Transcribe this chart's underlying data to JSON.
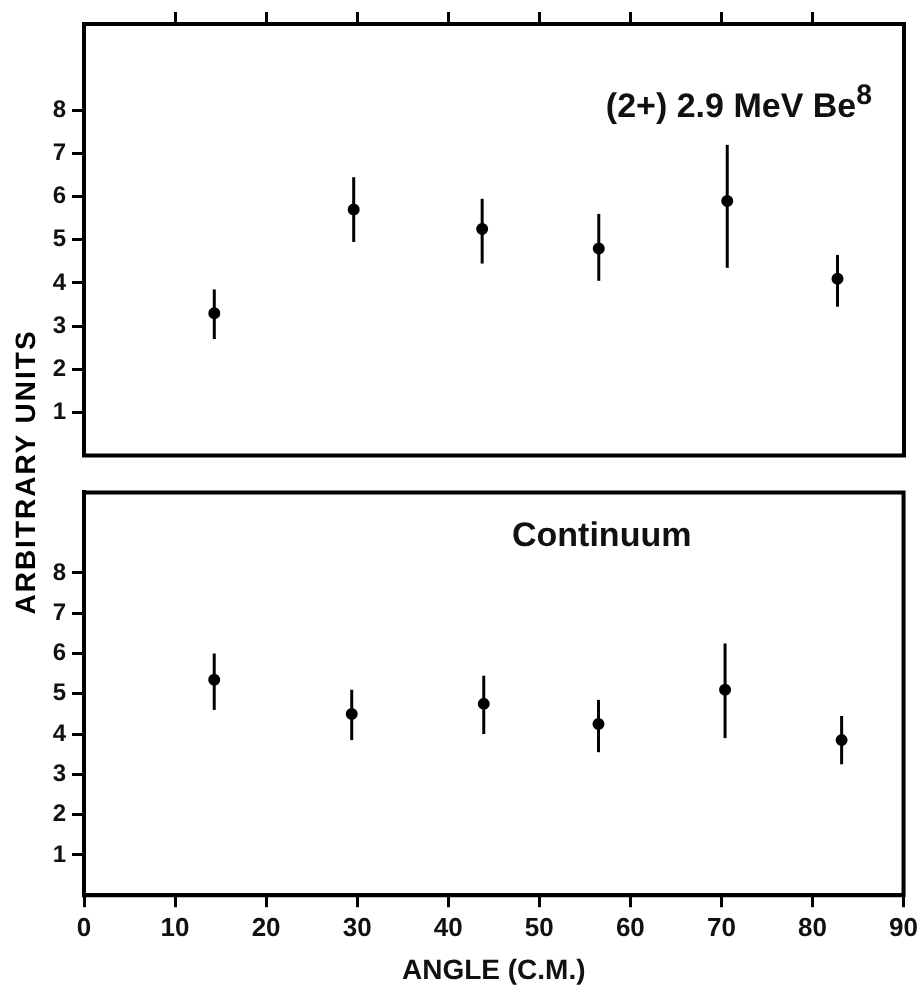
{
  "chart_data": [
    {
      "type": "scatter",
      "ylabel": "ARBITRARY UNITS",
      "annotations": [
        "(2+) 2.9 MeV Be$^{8}$"
      ],
      "color": "#000000",
      "marker": "circle",
      "grid": false,
      "tick_labels": "y",
      "x": [
        14.3,
        29.6,
        43.7,
        56.5,
        70.6,
        82.7
      ],
      "values": [
        3.3,
        5.7,
        5.25,
        4.8,
        5.9,
        4.1
      ],
      "errors": [
        [
          2.7,
          3.85
        ],
        [
          4.95,
          6.45
        ],
        [
          4.45,
          5.95
        ],
        [
          4.05,
          5.6
        ],
        [
          4.35,
          7.2
        ],
        [
          3.45,
          4.65
        ]
      ],
      "xlim": [
        0,
        90
      ],
      "ylim": [
        0,
        10
      ],
      "xticks": [
        {
          "value": 10,
          "label": null
        },
        {
          "value": 20,
          "label": null
        },
        {
          "value": 30,
          "label": null
        },
        {
          "value": 40,
          "label": null
        },
        {
          "value": 50,
          "label": null
        },
        {
          "value": 60,
          "label": null
        },
        {
          "value": 70,
          "label": null
        },
        {
          "value": 80,
          "label": null
        }
      ],
      "yticks": [
        1,
        2,
        3,
        4,
        5,
        6,
        7,
        8
      ]
    },
    {
      "type": "scatter",
      "xlabel": "ANGLE (C.M.)",
      "annotations": [
        "Continuum"
      ],
      "color": "#000000",
      "marker": "circle",
      "grid": false,
      "x": [
        14.3,
        29.4,
        43.9,
        56.5,
        70.4,
        83.2
      ],
      "values": [
        5.35,
        4.5,
        4.75,
        4.25,
        5.1,
        3.85
      ],
      "errors": [
        [
          4.6,
          6.0
        ],
        [
          3.85,
          5.1
        ],
        [
          4.0,
          5.45
        ],
        [
          3.55,
          4.85
        ],
        [
          3.9,
          6.25
        ],
        [
          3.25,
          4.45
        ]
      ],
      "xlim": [
        0,
        90
      ],
      "ylim": [
        0,
        10
      ],
      "xticks": [
        0,
        10,
        20,
        30,
        40,
        50,
        60,
        70,
        80,
        90
      ],
      "yticks": [
        1,
        2,
        3,
        4,
        5,
        6,
        7,
        8
      ]
    }
  ]
}
